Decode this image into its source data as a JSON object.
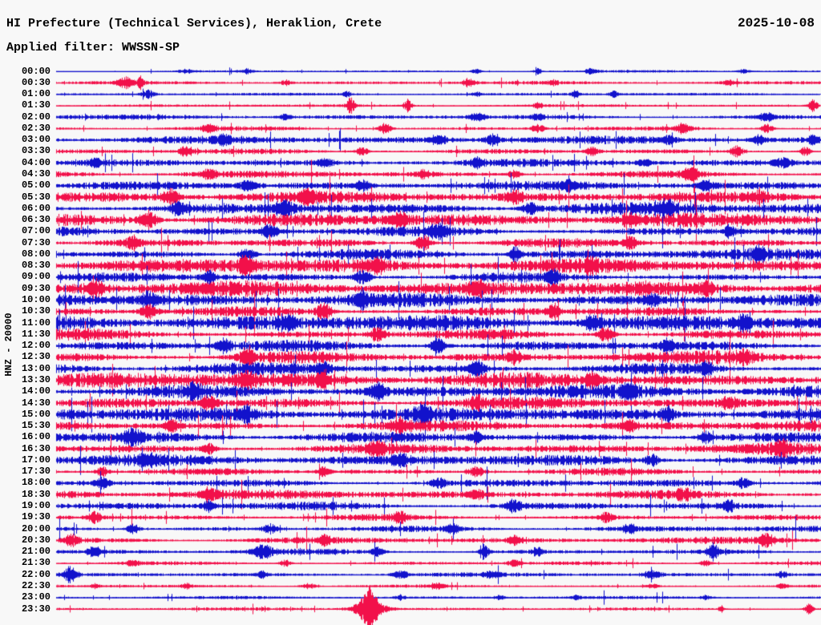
{
  "header": {
    "title": "HI Prefecture (Technical Services), Heraklion, Crete",
    "date": "2025-10-08",
    "filter": "Applied filter: WWSSN-SP"
  },
  "y_axis_label": "HNZ - 20000",
  "colors": {
    "blue": "#1212cc",
    "red": "#f2104a",
    "background": "#f8f8f8",
    "text": "#000000"
  },
  "chart_data": {
    "type": "line",
    "subtype": "helicorder-seismogram",
    "title": "HI Prefecture (Technical Services), Heraklion, Crete",
    "date": "2025-10-08",
    "applied_filter": "WWSSN-SP",
    "channel_label": "HNZ - 20000",
    "minutes_per_row": 30,
    "row_color_alternation": [
      "blue",
      "red"
    ],
    "amp_note": "amp = relative background envelope half-height; bursts = [x_fraction_of_row, extra_amplitude, width_px]",
    "rows": [
      {
        "time": "00:00",
        "color": "blue",
        "amp": 1.1,
        "bursts": [
          [
            0.17,
            2,
            10
          ],
          [
            0.25,
            2.5,
            8
          ],
          [
            0.55,
            2.5,
            6
          ],
          [
            0.63,
            3.5,
            5
          ],
          [
            0.7,
            2.5,
            8
          ],
          [
            0.9,
            2,
            8
          ]
        ]
      },
      {
        "time": "00:30",
        "color": "red",
        "amp": 1.4,
        "bursts": [
          [
            0.09,
            5,
            10
          ],
          [
            0.11,
            6,
            4
          ],
          [
            0.3,
            2.5,
            8
          ],
          [
            0.54,
            4.5,
            7
          ],
          [
            0.65,
            3,
            6
          ],
          [
            0.88,
            2.5,
            8
          ]
        ]
      },
      {
        "time": "01:00",
        "color": "blue",
        "amp": 1.1,
        "bursts": [
          [
            0.12,
            4.5,
            8
          ],
          [
            0.38,
            2.5,
            6
          ],
          [
            0.55,
            2,
            6
          ],
          [
            0.68,
            4,
            5
          ],
          [
            0.73,
            3,
            5
          ]
        ]
      },
      {
        "time": "01:30",
        "color": "red",
        "amp": 1.1,
        "bursts": [
          [
            0.385,
            9,
            5
          ],
          [
            0.46,
            7,
            5
          ],
          [
            0.63,
            3,
            6
          ],
          [
            0.99,
            6,
            6
          ]
        ]
      },
      {
        "time": "02:00",
        "color": "blue",
        "amp": 2.0,
        "bursts": [
          [
            0.3,
            3,
            8
          ],
          [
            0.55,
            3.5,
            8
          ],
          [
            0.63,
            3,
            8
          ],
          [
            0.93,
            4,
            10
          ]
        ]
      },
      {
        "time": "02:30",
        "color": "red",
        "amp": 2.6,
        "bursts": [
          [
            0.2,
            4,
            8
          ],
          [
            0.43,
            5.5,
            8
          ],
          [
            0.63,
            4,
            8
          ],
          [
            0.82,
            5,
            10
          ],
          [
            0.93,
            4,
            8
          ]
        ]
      },
      {
        "time": "03:00",
        "color": "blue",
        "amp": 3.0,
        "bursts": [
          [
            0.22,
            4,
            8
          ],
          [
            0.5,
            5,
            10
          ],
          [
            0.57,
            5.5,
            8
          ],
          [
            0.8,
            4,
            8
          ],
          [
            0.92,
            5,
            8
          ],
          [
            0.99,
            6,
            6
          ]
        ]
      },
      {
        "time": "03:30",
        "color": "red",
        "amp": 3.2,
        "bursts": [
          [
            0.17,
            5,
            8
          ],
          [
            0.4,
            4,
            8
          ],
          [
            0.7,
            4.5,
            8
          ],
          [
            0.89,
            6,
            8
          ],
          [
            0.98,
            5,
            6
          ]
        ]
      },
      {
        "time": "04:00",
        "color": "blue",
        "amp": 3.2,
        "bursts": [
          [
            0.05,
            4,
            8
          ],
          [
            0.35,
            4,
            10
          ],
          [
            0.55,
            4.5,
            8
          ],
          [
            0.77,
            4,
            8
          ],
          [
            0.95,
            5,
            10
          ]
        ]
      },
      {
        "time": "04:30",
        "color": "red",
        "amp": 3.6,
        "bursts": [
          [
            0.2,
            5,
            8
          ],
          [
            0.48,
            4,
            8
          ],
          [
            0.6,
            4.5,
            8
          ],
          [
            0.83,
            6,
            10
          ]
        ]
      },
      {
        "time": "05:00",
        "color": "blue",
        "amp": 3.8,
        "bursts": [
          [
            0.25,
            4,
            10
          ],
          [
            0.4,
            4.5,
            8
          ],
          [
            0.67,
            4,
            8
          ],
          [
            0.85,
            5,
            10
          ]
        ]
      },
      {
        "time": "05:30",
        "color": "red",
        "amp": 4.4,
        "bursts": [
          [
            0.15,
            7,
            10
          ],
          [
            0.33,
            5,
            8
          ],
          [
            0.6,
            5,
            10
          ],
          [
            0.92,
            5,
            8
          ]
        ]
      },
      {
        "time": "06:00",
        "color": "blue",
        "amp": 5.4,
        "bursts": [
          [
            0.16,
            6,
            8
          ],
          [
            0.3,
            8,
            12
          ],
          [
            0.62,
            6,
            10
          ],
          [
            0.8,
            7,
            10
          ]
        ]
      },
      {
        "time": "06:30",
        "color": "red",
        "amp": 5.4,
        "bursts": [
          [
            0.12,
            7,
            12
          ],
          [
            0.45,
            6,
            10
          ],
          [
            0.75,
            6,
            8
          ]
        ]
      },
      {
        "time": "07:00",
        "color": "blue",
        "amp": 5.4,
        "bursts": [
          [
            0.28,
            6,
            10
          ],
          [
            0.5,
            7,
            10
          ],
          [
            0.88,
            6,
            8
          ]
        ]
      },
      {
        "time": "07:30",
        "color": "red",
        "amp": 5.4,
        "bursts": [
          [
            0.1,
            6,
            8
          ],
          [
            0.48,
            7,
            10
          ],
          [
            0.75,
            6,
            8
          ]
        ]
      },
      {
        "time": "08:00",
        "color": "blue",
        "amp": 5.4,
        "bursts": [
          [
            0.25,
            6,
            10
          ],
          [
            0.6,
            6,
            8
          ],
          [
            0.92,
            6,
            8
          ]
        ]
      },
      {
        "time": "08:30",
        "color": "red",
        "amp": 5.6,
        "bursts": [
          [
            0.25,
            7,
            10
          ],
          [
            0.42,
            6,
            8
          ],
          [
            0.7,
            6,
            8
          ]
        ]
      },
      {
        "time": "09:00",
        "color": "blue",
        "amp": 5.8,
        "bursts": [
          [
            0.2,
            6,
            8
          ],
          [
            0.4,
            7,
            10
          ],
          [
            0.65,
            6,
            8
          ]
        ]
      },
      {
        "time": "09:30",
        "color": "red",
        "amp": 5.8,
        "bursts": [
          [
            0.05,
            7,
            10
          ],
          [
            0.55,
            6,
            8
          ],
          [
            0.85,
            6,
            8
          ]
        ]
      },
      {
        "time": "10:00",
        "color": "blue",
        "amp": 6.0,
        "bursts": [
          [
            0.12,
            7,
            10
          ],
          [
            0.4,
            6,
            8
          ],
          [
            0.78,
            6,
            8
          ]
        ]
      },
      {
        "time": "10:30",
        "color": "red",
        "amp": 6.0,
        "bursts": [
          [
            0.12,
            7,
            10
          ],
          [
            0.35,
            8,
            10
          ],
          [
            0.65,
            6,
            8
          ]
        ]
      },
      {
        "time": "11:00",
        "color": "blue",
        "amp": 6.2,
        "bursts": [
          [
            0.3,
            6,
            8
          ],
          [
            0.7,
            7,
            10
          ],
          [
            0.9,
            6,
            8
          ]
        ]
      },
      {
        "time": "11:30",
        "color": "red",
        "amp": 6.2,
        "bursts": [
          [
            0.42,
            7,
            10
          ],
          [
            0.72,
            8,
            10
          ]
        ]
      },
      {
        "time": "12:00",
        "color": "blue",
        "amp": 6.2,
        "bursts": [
          [
            0.22,
            6,
            8
          ],
          [
            0.5,
            7,
            10
          ],
          [
            0.8,
            6,
            8
          ]
        ]
      },
      {
        "time": "12:30",
        "color": "red",
        "amp": 6.2,
        "bursts": [
          [
            0.25,
            8,
            10
          ],
          [
            0.6,
            6,
            8
          ],
          [
            0.9,
            6,
            8
          ]
        ]
      },
      {
        "time": "13:00",
        "color": "blue",
        "amp": 6.2,
        "bursts": [
          [
            0.35,
            6,
            8
          ],
          [
            0.55,
            7,
            10
          ],
          [
            0.85,
            6,
            8
          ]
        ]
      },
      {
        "time": "13:30",
        "color": "red",
        "amp": 6.2,
        "bursts": [
          [
            0.25,
            7,
            10
          ],
          [
            0.35,
            8,
            8
          ],
          [
            0.7,
            6,
            8
          ]
        ]
      },
      {
        "time": "14:00",
        "color": "blue",
        "amp": 5.8,
        "bursts": [
          [
            0.18,
            6,
            8
          ],
          [
            0.42,
            7,
            10
          ],
          [
            0.75,
            6,
            8
          ]
        ]
      },
      {
        "time": "14:30",
        "color": "red",
        "amp": 5.4,
        "bursts": [
          [
            0.2,
            6,
            10
          ],
          [
            0.55,
            6,
            8
          ],
          [
            0.88,
            6,
            8
          ]
        ]
      },
      {
        "time": "15:00",
        "color": "blue",
        "amp": 5.4,
        "bursts": [
          [
            0.25,
            6,
            8
          ],
          [
            0.48,
            7,
            10
          ],
          [
            0.8,
            6,
            8
          ]
        ]
      },
      {
        "time": "15:30",
        "color": "red",
        "amp": 5.0,
        "bursts": [
          [
            0.15,
            6,
            8
          ],
          [
            0.45,
            6,
            10
          ],
          [
            0.75,
            5,
            8
          ]
        ]
      },
      {
        "time": "16:00",
        "color": "blue",
        "amp": 5.0,
        "bursts": [
          [
            0.1,
            7,
            10
          ],
          [
            0.55,
            6,
            8
          ],
          [
            0.85,
            5,
            8
          ]
        ]
      },
      {
        "time": "16:30",
        "color": "red",
        "amp": 4.8,
        "bursts": [
          [
            0.2,
            5,
            8
          ],
          [
            0.42,
            6,
            10
          ],
          [
            0.95,
            7,
            8
          ]
        ]
      },
      {
        "time": "17:00",
        "color": "blue",
        "amp": 4.4,
        "bursts": [
          [
            0.12,
            5,
            8
          ],
          [
            0.45,
            6,
            10
          ],
          [
            0.78,
            5,
            8
          ]
        ]
      },
      {
        "time": "17:30",
        "color": "red",
        "amp": 4.2,
        "bursts": [
          [
            0.06,
            5,
            8
          ],
          [
            0.35,
            5,
            8
          ],
          [
            0.55,
            5,
            10
          ]
        ]
      },
      {
        "time": "18:00",
        "color": "blue",
        "amp": 4.2,
        "bursts": [
          [
            0.06,
            6,
            8
          ],
          [
            0.5,
            5,
            8
          ],
          [
            0.9,
            5,
            10
          ]
        ]
      },
      {
        "time": "18:30",
        "color": "red",
        "amp": 4.0,
        "bursts": [
          [
            0.2,
            5,
            8
          ],
          [
            0.55,
            5,
            8
          ],
          [
            0.82,
            5,
            8
          ]
        ]
      },
      {
        "time": "19:00",
        "color": "blue",
        "amp": 4.0,
        "bursts": [
          [
            0.2,
            5,
            8
          ],
          [
            0.6,
            6,
            10
          ],
          [
            0.88,
            5,
            8
          ]
        ]
      },
      {
        "time": "19:30",
        "color": "red",
        "amp": 3.4,
        "bursts": [
          [
            0.05,
            6,
            8
          ],
          [
            0.45,
            5,
            8
          ],
          [
            0.72,
            5,
            8
          ]
        ]
      },
      {
        "time": "20:00",
        "color": "blue",
        "amp": 3.2,
        "bursts": [
          [
            0.1,
            5,
            8
          ],
          [
            0.28,
            5,
            10
          ],
          [
            0.52,
            5,
            8
          ],
          [
            0.75,
            4,
            8
          ]
        ]
      },
      {
        "time": "20:30",
        "color": "red",
        "amp": 2.7,
        "bursts": [
          [
            0.02,
            6,
            8
          ],
          [
            0.35,
            4,
            8
          ],
          [
            0.6,
            4,
            8
          ],
          [
            0.93,
            6,
            10
          ]
        ]
      },
      {
        "time": "21:00",
        "color": "blue",
        "amp": 2.9,
        "bursts": [
          [
            0.05,
            5,
            8
          ],
          [
            0.27,
            7,
            12
          ],
          [
            0.42,
            5,
            8
          ],
          [
            0.56,
            8,
            6
          ],
          [
            0.63,
            5,
            6
          ],
          [
            0.86,
            6,
            8
          ]
        ]
      },
      {
        "time": "21:30",
        "color": "red",
        "amp": 2.1,
        "bursts": [
          [
            0.1,
            3,
            8
          ],
          [
            0.3,
            3.5,
            8
          ],
          [
            0.6,
            3,
            8
          ],
          [
            0.85,
            3,
            8
          ]
        ]
      },
      {
        "time": "22:00",
        "color": "blue",
        "amp": 1.7,
        "bursts": [
          [
            0.018,
            8,
            8
          ],
          [
            0.27,
            3,
            6
          ],
          [
            0.45,
            4,
            10
          ],
          [
            0.57,
            3,
            8
          ],
          [
            0.78,
            4.5,
            10
          ],
          [
            0.95,
            3,
            6
          ]
        ]
      },
      {
        "time": "22:30",
        "color": "red",
        "amp": 1.5,
        "bursts": [
          [
            0.05,
            2.5,
            6
          ],
          [
            0.17,
            3,
            6
          ],
          [
            0.33,
            3,
            10
          ],
          [
            0.5,
            2.5,
            8
          ],
          [
            0.78,
            2.5,
            8
          ],
          [
            0.95,
            2.5,
            6
          ]
        ]
      },
      {
        "time": "23:00",
        "color": "blue",
        "amp": 1.2,
        "bursts": [
          [
            0.45,
            2.5,
            6
          ],
          [
            0.58,
            2.5,
            6
          ],
          [
            0.68,
            2,
            6
          ],
          [
            0.85,
            2,
            6
          ]
        ]
      },
      {
        "time": "23:30",
        "color": "red",
        "amp": 1.3,
        "bursts": [
          [
            0.41,
            18,
            9
          ],
          [
            0.41,
            8,
            22
          ],
          [
            0.87,
            4,
            3
          ],
          [
            0.985,
            5,
            6
          ]
        ]
      }
    ]
  }
}
